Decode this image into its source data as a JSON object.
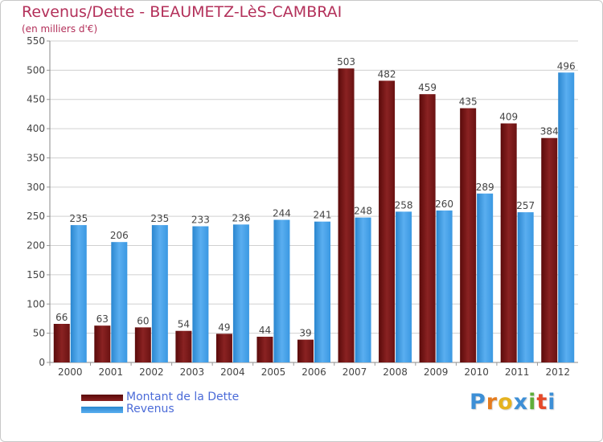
{
  "chart_data": {
    "type": "bar",
    "title": "Revenus/Dette - BEAUMETZ-LèS-CAMBRAI",
    "subtitle": "(en milliers d'€)",
    "categories": [
      "2000",
      "2001",
      "2002",
      "2003",
      "2004",
      "2005",
      "2006",
      "2007",
      "2008",
      "2009",
      "2010",
      "2011",
      "2012"
    ],
    "series": [
      {
        "name": "Montant de la Dette",
        "values": [
          66,
          63,
          60,
          54,
          49,
          44,
          39,
          503,
          482,
          459,
          435,
          409,
          384
        ],
        "color": "#7a1616"
      },
      {
        "name": "Revenus",
        "values": [
          235,
          206,
          235,
          233,
          236,
          244,
          241,
          248,
          258,
          260,
          289,
          257,
          496
        ],
        "color": "#3d9ade"
      }
    ],
    "ylim": [
      0,
      550
    ],
    "yticks": [
      0,
      50,
      100,
      150,
      200,
      250,
      300,
      350,
      400,
      450,
      500,
      550
    ],
    "grid": true,
    "legend_position": "bottom-left"
  },
  "logo": {
    "letters": [
      "P",
      "r",
      "o",
      "x",
      "i",
      "t",
      "i"
    ],
    "colors": [
      "#3d8fd6",
      "#e57c1f",
      "#e5b21f",
      "#3d8fd6",
      "#5fae3a",
      "#e54a2a",
      "#3d8fd6"
    ]
  }
}
